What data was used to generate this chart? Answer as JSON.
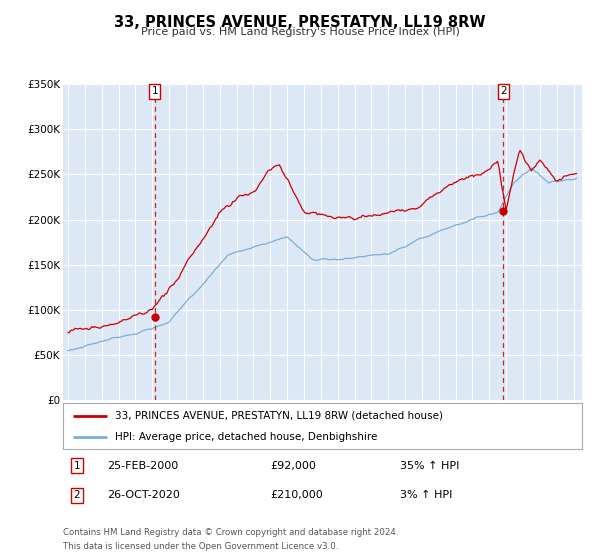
{
  "title": "33, PRINCES AVENUE, PRESTATYN, LL19 8RW",
  "subtitle": "Price paid vs. HM Land Registry's House Price Index (HPI)",
  "legend_line1": "33, PRINCES AVENUE, PRESTATYN, LL19 8RW (detached house)",
  "legend_line2": "HPI: Average price, detached house, Denbighshire",
  "footnote1": "Contains HM Land Registry data © Crown copyright and database right 2024.",
  "footnote2": "This data is licensed under the Open Government Licence v3.0.",
  "marker1_label": "1",
  "marker1_date": "25-FEB-2000",
  "marker1_price": "£92,000",
  "marker1_hpi": "35% ↑ HPI",
  "marker1_x": 2000.14,
  "marker1_y": 92000,
  "marker2_label": "2",
  "marker2_date": "26-OCT-2020",
  "marker2_price": "£210,000",
  "marker2_hpi": "3% ↑ HPI",
  "marker2_x": 2020.82,
  "marker2_y": 210000,
  "hpi_color": "#7bafd4",
  "price_color": "#cc0000",
  "dashed_line_color": "#cc0000",
  "background_color": "#dce8f5",
  "ylim": [
    0,
    350000
  ],
  "yticks": [
    0,
    50000,
    100000,
    150000,
    200000,
    250000,
    300000,
    350000
  ],
  "ytick_labels": [
    "£0",
    "£50K",
    "£100K",
    "£150K",
    "£200K",
    "£250K",
    "£300K",
    "£350K"
  ],
  "xlim_start": 1994.7,
  "xlim_end": 2025.5
}
